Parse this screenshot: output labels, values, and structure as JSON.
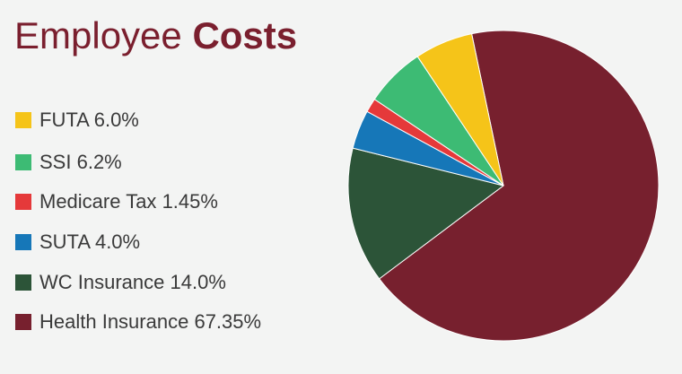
{
  "chart_data": {
    "type": "pie",
    "title": [
      "Employee",
      "Costs"
    ],
    "categories": [
      "FUTA",
      "SSI",
      "Medicare Tax",
      "SUTA",
      "WC Insurance",
      "Health Insurance"
    ],
    "values": [
      6.0,
      6.2,
      1.45,
      4.0,
      14.0,
      67.35
    ],
    "value_labels": [
      "6.0%",
      "6.2%",
      "1.45%",
      "4.0%",
      "14.0%",
      "67.35%"
    ],
    "colors": [
      "#f5c419",
      "#3dbb74",
      "#e5393a",
      "#1677b8",
      "#2c5438",
      "#77202e"
    ]
  }
}
